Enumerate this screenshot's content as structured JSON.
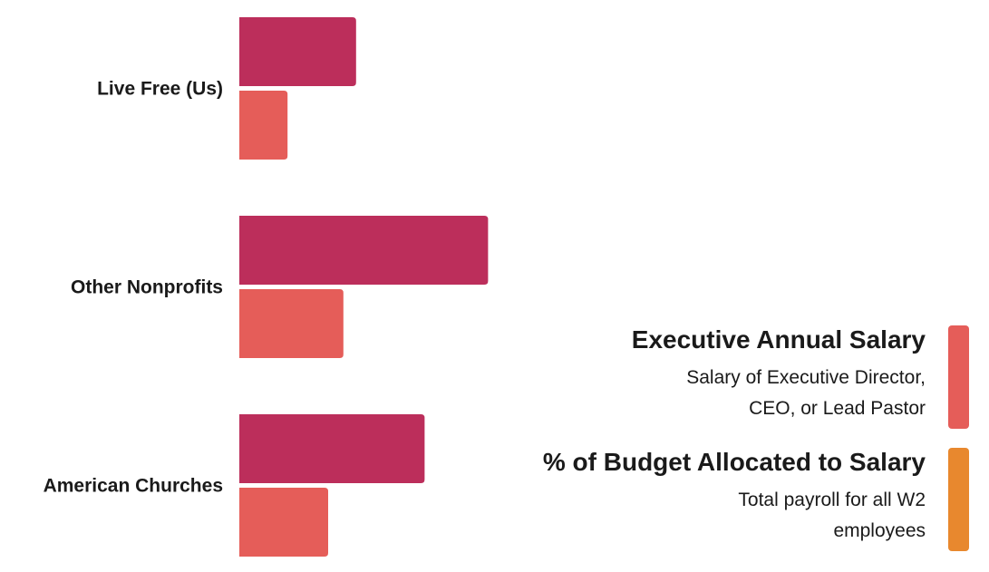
{
  "chart_data": {
    "type": "bar",
    "orientation": "horizontal",
    "categories": [
      "Live Free (Us)",
      "Other Nonprofits",
      "American Churches"
    ],
    "series": [
      {
        "name": "Executive Annual Salary",
        "color": "#BC2E5B",
        "values": [
          46,
          98,
          73
        ]
      },
      {
        "name": "% of Budget Allocated to Salary",
        "color": "#E55D59",
        "values": [
          19,
          41,
          35
        ]
      }
    ],
    "xlim": [
      0,
      100
    ],
    "axis_labels_shown": false,
    "gridlines": false
  },
  "legend": {
    "items": [
      {
        "title": "Executive Annual Salary",
        "desc_line1": "Salary of Executive Director,",
        "desc_line2": "CEO, or Lead Pastor",
        "color": "#E55D59"
      },
      {
        "title": "% of Budget Allocated to Salary",
        "desc_line1": "Total payroll for all W2",
        "desc_line2": "employees",
        "color": "#E8882E"
      }
    ]
  }
}
